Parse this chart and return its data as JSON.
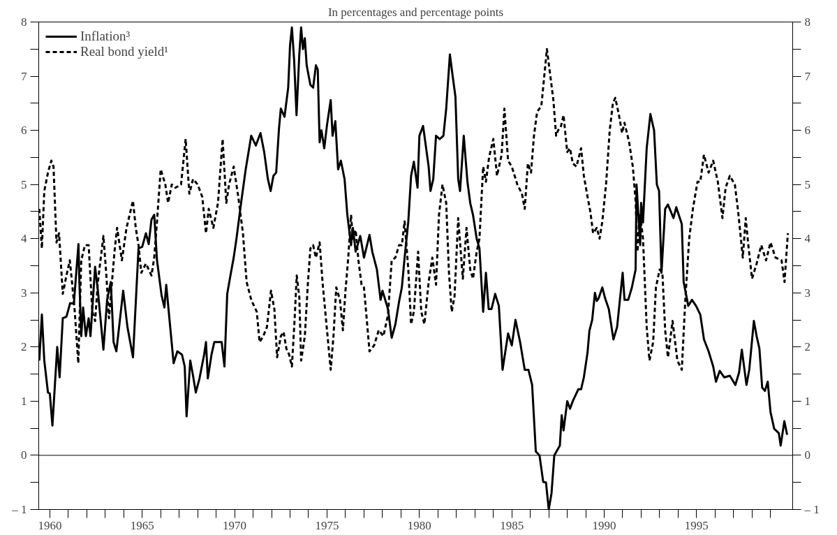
{
  "chart_data": {
    "type": "line",
    "title": "In percentages and percentage points",
    "xlim": [
      1959.4,
      2000.2
    ],
    "xticks": [
      {
        "value": 1960,
        "label": "1960"
      },
      {
        "value": 1961,
        "label": null
      },
      {
        "value": 1962,
        "label": null
      },
      {
        "value": 1963,
        "label": null
      },
      {
        "value": 1964,
        "label": null
      },
      {
        "value": 1965,
        "label": "1965"
      },
      {
        "value": 1966,
        "label": null
      },
      {
        "value": 1967,
        "label": null
      },
      {
        "value": 1968,
        "label": null
      },
      {
        "value": 1969,
        "label": null
      },
      {
        "value": 1970,
        "label": "1970"
      },
      {
        "value": 1971,
        "label": null
      },
      {
        "value": 1972,
        "label": null
      },
      {
        "value": 1973,
        "label": null
      },
      {
        "value": 1974,
        "label": null
      },
      {
        "value": 1975,
        "label": "1975"
      },
      {
        "value": 1976,
        "label": null
      },
      {
        "value": 1977,
        "label": null
      },
      {
        "value": 1978,
        "label": null
      },
      {
        "value": 1979,
        "label": null
      },
      {
        "value": 1980,
        "label": "1980"
      },
      {
        "value": 1981,
        "label": null
      },
      {
        "value": 1982,
        "label": null
      },
      {
        "value": 1983,
        "label": null
      },
      {
        "value": 1984,
        "label": null
      },
      {
        "value": 1985,
        "label": "1985"
      },
      {
        "value": 1986,
        "label": null
      },
      {
        "value": 1987,
        "label": null
      },
      {
        "value": 1988,
        "label": null
      },
      {
        "value": 1989,
        "label": null
      },
      {
        "value": 1990,
        "label": "1990"
      },
      {
        "value": 1991,
        "label": null
      },
      {
        "value": 1992,
        "label": null
      },
      {
        "value": 1993,
        "label": null
      },
      {
        "value": 1994,
        "label": null
      },
      {
        "value": 1995,
        "label": "1995"
      },
      {
        "value": 1996,
        "label": null
      },
      {
        "value": 1997,
        "label": null
      },
      {
        "value": 1998,
        "label": null
      },
      {
        "value": 1999,
        "label": null
      }
    ],
    "ylim": [
      -1,
      8
    ],
    "yticks": [
      {
        "value": -1,
        "label": "– 1"
      },
      {
        "value": -0.5,
        "label": null
      },
      0,
      {
        "value": 0.5,
        "label": null
      },
      1,
      {
        "value": 1.5,
        "label": null
      },
      2,
      {
        "value": 2.5,
        "label": null
      },
      3,
      {
        "value": 3.5,
        "label": null
      },
      4,
      {
        "value": 4.5,
        "label": null
      },
      5,
      {
        "value": 5.5,
        "label": null
      },
      6,
      {
        "value": 6.5,
        "label": null
      },
      7,
      {
        "value": 7.5,
        "label": null
      },
      8
    ],
    "y2lim": [
      -1,
      8
    ],
    "y2ticks": [
      {
        "value": -1,
        "label": "– 1"
      },
      {
        "value": -0.5,
        "label": null
      },
      0,
      {
        "value": 0.5,
        "label": null
      },
      1,
      {
        "value": 1.5,
        "label": null
      },
      2,
      {
        "value": 2.5,
        "label": null
      },
      3,
      {
        "value": 3.5,
        "label": null
      },
      4,
      {
        "value": 4.5,
        "label": null
      },
      5,
      {
        "value": 5.5,
        "label": null
      },
      6,
      {
        "value": 6.5,
        "label": null
      },
      7,
      {
        "value": 7.5,
        "label": null
      },
      8
    ],
    "grid": false,
    "legend": "top left",
    "ref_lines": [
      {
        "axis": "y",
        "value": 0,
        "label": null,
        "color": "#000000",
        "line_style": "solid"
      }
    ],
    "series": [
      {
        "name": "Inflation³",
        "color": "#000000",
        "line_style": "solid",
        "x": [
          1959.43,
          1959.57,
          1959.7,
          1959.9,
          1960.0,
          1960.14,
          1960.4,
          1960.53,
          1960.7,
          1960.9,
          1961.1,
          1961.3,
          1961.55,
          1961.6,
          1961.7,
          1961.8,
          1961.95,
          1962.1,
          1962.2,
          1962.45,
          1962.6,
          1962.9,
          1963.1,
          1963.3,
          1963.45,
          1963.6,
          1963.97,
          1964.2,
          1964.5,
          1964.8,
          1965.0,
          1965.2,
          1965.35,
          1965.5,
          1965.65,
          1965.8,
          1966.05,
          1966.2,
          1966.3,
          1966.5,
          1966.7,
          1966.9,
          1967.15,
          1967.3,
          1967.4,
          1967.6,
          1967.75,
          1967.9,
          1968.1,
          1968.35,
          1968.45,
          1968.55,
          1968.75,
          1968.9,
          1969.3,
          1969.45,
          1969.6,
          1969.8,
          1969.95,
          1970.1,
          1970.35,
          1970.6,
          1970.9,
          1971.15,
          1971.4,
          1971.6,
          1971.8,
          1971.95,
          1972.1,
          1972.25,
          1972.4,
          1972.5,
          1972.7,
          1972.9,
          1973.0,
          1973.1,
          1973.22,
          1973.35,
          1973.5,
          1973.6,
          1973.7,
          1973.8,
          1973.9,
          1974.1,
          1974.25,
          1974.4,
          1974.5,
          1974.6,
          1974.7,
          1974.85,
          1975.0,
          1975.2,
          1975.3,
          1975.45,
          1975.6,
          1975.75,
          1975.95,
          1976.1,
          1976.3,
          1976.4,
          1976.55,
          1976.8,
          1977.0,
          1977.3,
          1977.45,
          1977.7,
          1977.9,
          1978.0,
          1978.3,
          1978.5,
          1978.7,
          1978.9,
          1979.05,
          1979.2,
          1979.4,
          1979.55,
          1979.7,
          1979.9,
          1980.0,
          1980.2,
          1980.5,
          1980.6,
          1980.75,
          1980.9,
          1981.1,
          1981.3,
          1981.45,
          1981.65,
          1981.8,
          1981.95,
          1982.1,
          1982.2,
          1982.4,
          1982.6,
          1982.75,
          1982.9,
          1983.1,
          1983.25,
          1983.45,
          1983.6,
          1983.75,
          1983.9,
          1984.1,
          1984.3,
          1984.5,
          1984.8,
          1985.0,
          1985.2,
          1985.45,
          1985.7,
          1985.9,
          1986.1,
          1986.3,
          1986.5,
          1986.7,
          1986.85,
          1987.0,
          1987.15,
          1987.3,
          1987.6,
          1987.7,
          1987.8,
          1988.0,
          1988.15,
          1988.3,
          1988.6,
          1988.75,
          1988.9,
          1989.1,
          1989.2,
          1989.35,
          1989.5,
          1989.6,
          1989.7,
          1989.9,
          1990.05,
          1990.25,
          1990.5,
          1990.7,
          1991.0,
          1991.1,
          1991.3,
          1991.5,
          1991.7,
          1991.75,
          1991.95,
          1992.0,
          1992.1,
          1992.3,
          1992.5,
          1992.7,
          1992.85,
          1992.97,
          1993.1,
          1993.3,
          1993.45,
          1993.75,
          1993.9,
          1994.2,
          1994.3,
          1994.55,
          1994.75,
          1994.97,
          1995.2,
          1995.4,
          1995.65,
          1995.9,
          1996.05,
          1996.25,
          1996.5,
          1996.8,
          1997.1,
          1997.3,
          1997.45,
          1997.7,
          1997.85,
          1998.1,
          1998.25,
          1998.4,
          1998.55,
          1998.7,
          1998.85,
          1999.0,
          1999.2,
          1999.45,
          1999.55,
          1999.75,
          1999.9
        ],
        "values": [
          1.75,
          2.6,
          1.75,
          1.16,
          1.14,
          0.55,
          2.0,
          1.44,
          2.53,
          2.56,
          2.81,
          2.8,
          3.9,
          3.2,
          2.2,
          2.73,
          2.2,
          2.53,
          2.2,
          3.48,
          3.04,
          1.95,
          2.87,
          3.2,
          2.09,
          1.92,
          3.04,
          2.37,
          1.81,
          3.82,
          3.85,
          4.1,
          3.9,
          4.35,
          4.44,
          3.6,
          2.95,
          2.73,
          3.15,
          2.42,
          1.7,
          1.92,
          1.86,
          1.64,
          0.72,
          1.75,
          1.47,
          1.16,
          1.42,
          1.86,
          2.09,
          1.42,
          1.86,
          2.09,
          2.09,
          1.64,
          2.98,
          3.37,
          3.65,
          4.0,
          4.66,
          5.28,
          5.9,
          5.72,
          5.95,
          5.6,
          5.1,
          4.88,
          5.16,
          5.22,
          6.03,
          6.4,
          6.25,
          6.79,
          7.57,
          7.9,
          7.3,
          6.28,
          7.4,
          7.9,
          7.5,
          7.7,
          7.2,
          6.84,
          6.79,
          7.2,
          7.12,
          5.78,
          6.0,
          5.67,
          6.1,
          6.56,
          5.9,
          6.17,
          5.28,
          5.44,
          5.1,
          4.44,
          3.88,
          4.2,
          3.76,
          4.05,
          3.65,
          4.07,
          3.76,
          3.43,
          2.87,
          3.04,
          2.7,
          2.17,
          2.42,
          2.84,
          3.1,
          3.65,
          4.32,
          5.16,
          5.42,
          4.94,
          5.9,
          6.08,
          5.33,
          4.88,
          5.1,
          5.9,
          5.84,
          5.9,
          6.4,
          7.4,
          7.0,
          6.62,
          5.1,
          4.88,
          5.9,
          5.05,
          4.66,
          4.44,
          4.0,
          3.82,
          2.65,
          3.37,
          2.7,
          2.7,
          2.98,
          2.76,
          1.58,
          2.25,
          2.03,
          2.5,
          2.09,
          1.58,
          1.58,
          1.3,
          0.07,
          0.0,
          -0.49,
          -0.5,
          -1.0,
          -0.7,
          0.0,
          0.18,
          0.74,
          0.46,
          1.0,
          0.86,
          1.0,
          1.22,
          1.22,
          1.44,
          1.9,
          2.3,
          2.5,
          3.0,
          2.85,
          2.9,
          3.1,
          2.9,
          2.7,
          2.14,
          2.37,
          3.37,
          2.87,
          2.87,
          3.1,
          3.43,
          5.0,
          3.88,
          4.66,
          4.3,
          5.67,
          6.3,
          6.0,
          5.0,
          4.88,
          3.37,
          4.55,
          4.63,
          4.38,
          4.58,
          4.27,
          3.2,
          2.76,
          2.87,
          2.76,
          2.6,
          2.14,
          1.92,
          1.64,
          1.36,
          1.56,
          1.44,
          1.47,
          1.3,
          1.53,
          1.95,
          1.3,
          1.58,
          2.48,
          2.2,
          1.97,
          1.25,
          1.19,
          1.36,
          0.8,
          0.49,
          0.41,
          0.18,
          0.63,
          0.38
        ]
      },
      {
        "name": "Real bond yield¹",
        "color": "#000000",
        "line_style": "dashed",
        "x": [
          1959.43,
          1959.57,
          1959.7,
          1959.9,
          1960.08,
          1960.2,
          1960.36,
          1960.5,
          1960.7,
          1960.9,
          1961.08,
          1961.2,
          1961.35,
          1961.54,
          1961.7,
          1961.9,
          1962.1,
          1962.3,
          1962.45,
          1962.6,
          1962.9,
          1963.05,
          1963.2,
          1963.5,
          1963.64,
          1963.9,
          1964.15,
          1964.5,
          1964.65,
          1964.8,
          1964.95,
          1965.2,
          1965.5,
          1965.65,
          1965.8,
          1966.0,
          1966.25,
          1966.4,
          1966.6,
          1966.8,
          1967.1,
          1967.35,
          1967.55,
          1967.75,
          1968.0,
          1968.25,
          1968.45,
          1968.6,
          1968.85,
          1969.1,
          1969.35,
          1969.55,
          1969.7,
          1969.95,
          1970.2,
          1970.45,
          1970.65,
          1970.9,
          1971.05,
          1971.2,
          1971.35,
          1971.55,
          1971.75,
          1971.97,
          1972.15,
          1972.3,
          1972.5,
          1972.65,
          1972.8,
          1972.95,
          1973.1,
          1973.25,
          1973.36,
          1973.5,
          1973.6,
          1973.8,
          1973.97,
          1974.1,
          1974.25,
          1974.4,
          1974.6,
          1974.77,
          1975.0,
          1975.2,
          1975.35,
          1975.5,
          1975.7,
          1975.86,
          1976.0,
          1976.15,
          1976.3,
          1976.4,
          1976.55,
          1976.7,
          1976.87,
          1977.0,
          1977.3,
          1977.55,
          1977.8,
          1978.05,
          1978.3,
          1978.5,
          1978.7,
          1978.9,
          1979.05,
          1979.2,
          1979.4,
          1979.55,
          1979.7,
          1979.93,
          1980.1,
          1980.27,
          1980.5,
          1980.7,
          1980.9,
          1981.06,
          1981.25,
          1981.45,
          1981.6,
          1981.75,
          1981.9,
          1982.1,
          1982.35,
          1982.55,
          1982.75,
          1982.9,
          1983.1,
          1983.25,
          1983.45,
          1983.6,
          1983.77,
          1984.0,
          1984.2,
          1984.45,
          1984.6,
          1984.8,
          1985.0,
          1985.3,
          1985.55,
          1985.7,
          1985.87,
          1986.04,
          1986.2,
          1986.37,
          1986.6,
          1986.9,
          1987.05,
          1987.25,
          1987.4,
          1987.5,
          1987.65,
          1987.8,
          1988.0,
          1988.15,
          1988.3,
          1988.5,
          1988.75,
          1988.9,
          1989.1,
          1989.25,
          1989.4,
          1989.6,
          1989.75,
          1989.9,
          1990.1,
          1990.3,
          1990.47,
          1990.6,
          1990.8,
          1990.97,
          1991.1,
          1991.35,
          1991.55,
          1991.7,
          1991.8,
          1991.95,
          1992.1,
          1992.3,
          1992.45,
          1992.65,
          1992.8,
          1993.0,
          1993.15,
          1993.3,
          1993.45,
          1993.7,
          1993.96,
          1994.2,
          1994.4,
          1994.6,
          1994.8,
          1995.05,
          1995.2,
          1995.4,
          1995.65,
          1995.9,
          1996.15,
          1996.4,
          1996.57,
          1996.8,
          1997.07,
          1997.25,
          1997.5,
          1997.66,
          1997.8,
          1998.0,
          1998.25,
          1998.5,
          1998.76,
          1999.0,
          1999.27,
          1999.6,
          1999.76,
          1999.94
        ],
        "values": [
          4.55,
          3.82,
          4.88,
          5.22,
          5.44,
          5.33,
          3.93,
          4.1,
          2.98,
          3.32,
          3.6,
          3.2,
          2.65,
          1.7,
          3.6,
          3.88,
          3.88,
          2.65,
          2.48,
          3.2,
          4.05,
          3.37,
          2.53,
          3.76,
          4.2,
          3.6,
          4.2,
          4.7,
          4.2,
          3.88,
          3.37,
          3.54,
          3.32,
          3.65,
          4.32,
          5.28,
          5.0,
          4.66,
          5.0,
          4.94,
          5.0,
          5.84,
          4.83,
          5.1,
          5.0,
          4.77,
          4.1,
          4.55,
          4.2,
          4.66,
          5.84,
          4.66,
          5.0,
          5.33,
          4.77,
          4.1,
          3.2,
          2.87,
          2.76,
          2.65,
          2.09,
          2.2,
          2.37,
          3.04,
          2.7,
          1.81,
          2.2,
          2.28,
          1.97,
          1.86,
          1.64,
          2.53,
          3.32,
          2.93,
          1.75,
          2.2,
          3.2,
          3.82,
          3.88,
          3.65,
          3.93,
          3.15,
          2.31,
          1.58,
          2.2,
          3.1,
          2.87,
          2.31,
          3.04,
          3.65,
          4.44,
          4.0,
          4.16,
          3.6,
          3.15,
          3.1,
          1.92,
          2.03,
          2.31,
          2.2,
          2.59,
          3.6,
          3.65,
          3.88,
          3.88,
          4.32,
          3.43,
          2.42,
          2.65,
          3.76,
          2.65,
          2.42,
          3.2,
          3.65,
          3.15,
          4.44,
          5.0,
          4.66,
          3.37,
          2.65,
          2.93,
          4.38,
          3.26,
          4.2,
          3.43,
          3.26,
          3.76,
          4.0,
          5.33,
          5.05,
          5.5,
          5.84,
          5.16,
          5.55,
          6.4,
          5.44,
          5.33,
          5.0,
          4.83,
          4.55,
          5.39,
          5.22,
          5.9,
          6.34,
          6.45,
          7.5,
          7.1,
          6.56,
          5.9,
          6.0,
          6.06,
          6.28,
          5.6,
          5.67,
          5.39,
          5.33,
          5.67,
          5.16,
          4.77,
          4.5,
          4.1,
          4.2,
          4.0,
          4.32,
          5.0,
          6.0,
          6.5,
          6.6,
          6.28,
          5.95,
          6.14,
          5.78,
          5.33,
          4.7,
          3.76,
          4.44,
          4.0,
          2.37,
          1.75,
          2.09,
          3.1,
          3.43,
          3.37,
          2.31,
          1.81,
          2.48,
          1.75,
          1.58,
          2.93,
          4.0,
          4.55,
          5.05,
          5.05,
          5.55,
          5.22,
          5.44,
          5.05,
          4.38,
          4.94,
          5.16,
          5.0,
          4.5,
          3.65,
          4.38,
          3.88,
          3.26,
          3.54,
          3.88,
          3.6,
          3.93,
          3.65,
          3.6,
          3.2,
          4.1
        ]
      }
    ]
  }
}
